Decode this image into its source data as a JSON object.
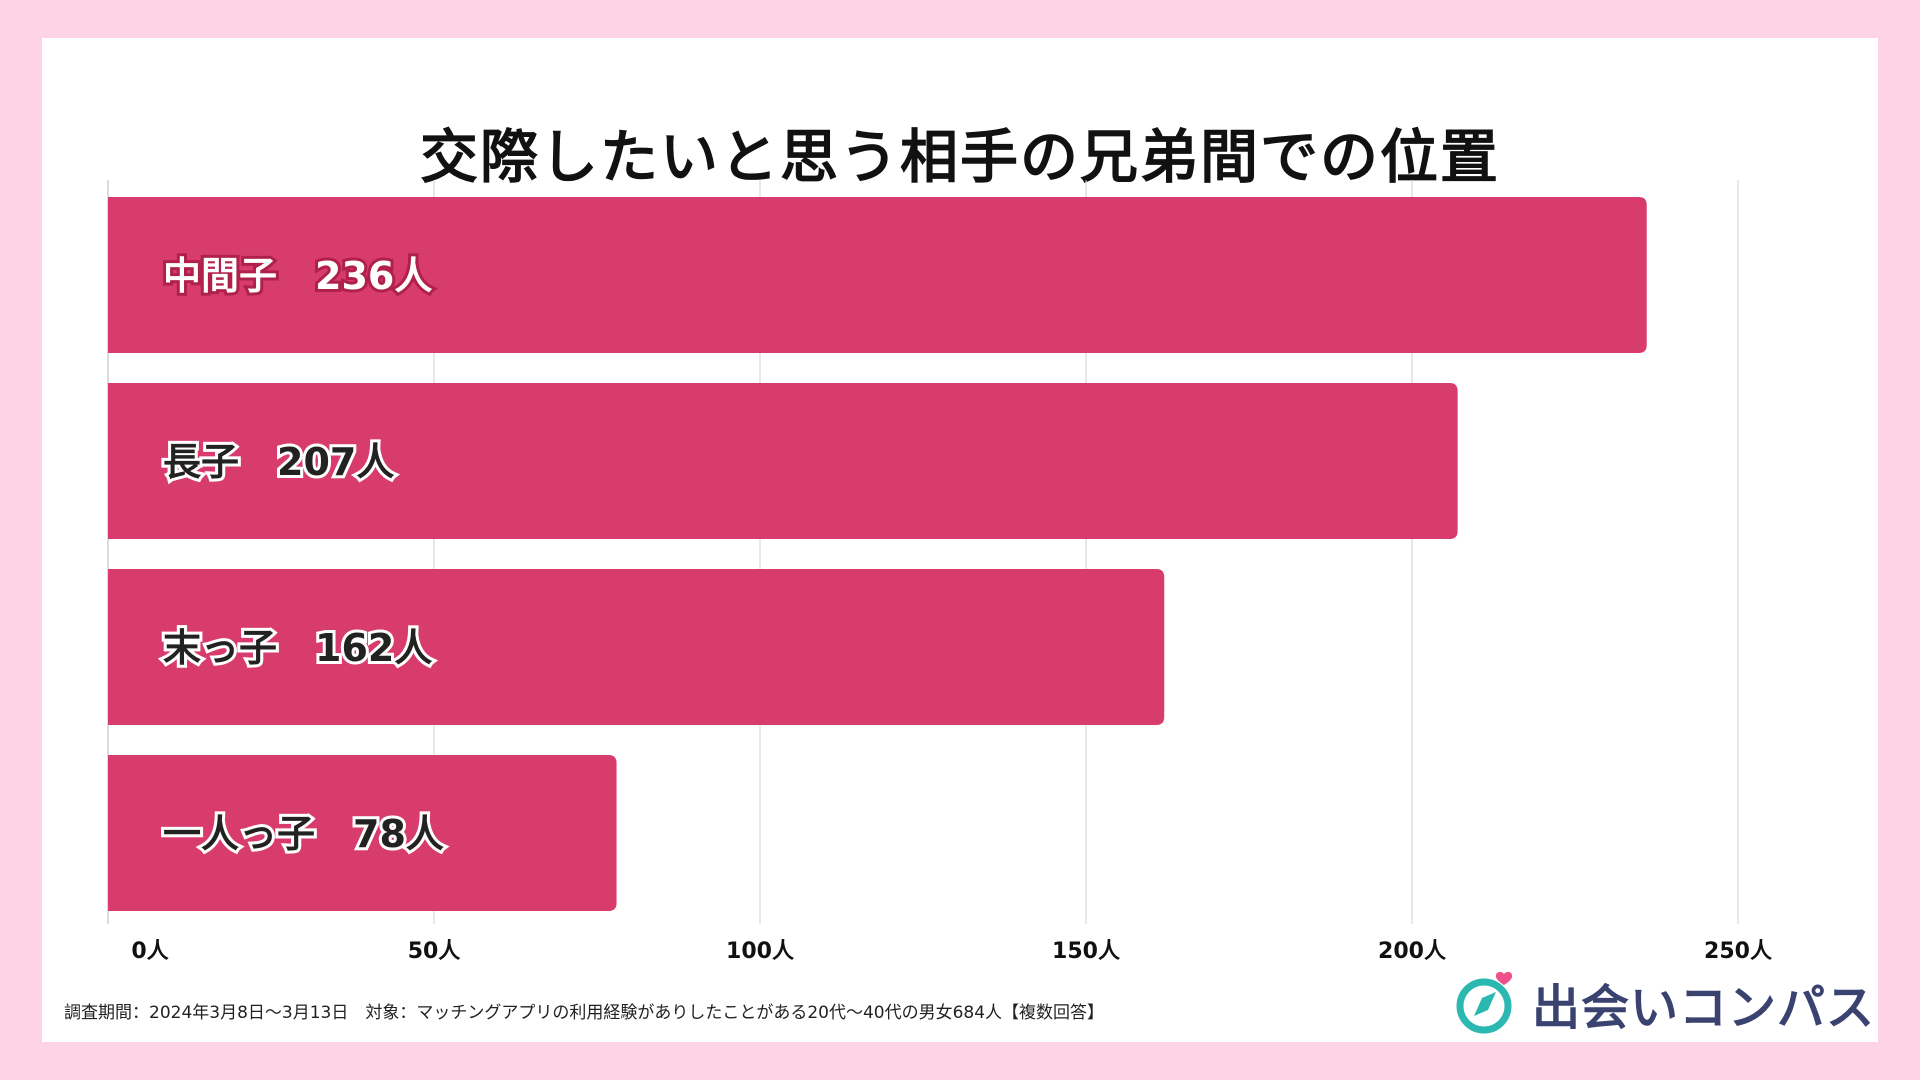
{
  "chart_data": {
    "type": "bar",
    "orientation": "horizontal",
    "title": "交際したいと思う相手の兄弟間での位置",
    "categories": [
      "中間子",
      "長子",
      "末っ子",
      "一人っ子"
    ],
    "values": [
      236,
      207,
      162,
      78
    ],
    "bar_labels": [
      "中間子　236人",
      "長子　207人",
      "末っ子　162人",
      "一人っ子　78人"
    ],
    "xlim": [
      0,
      250
    ],
    "x_ticks": [
      0,
      50,
      100,
      150,
      200,
      250
    ],
    "x_tick_labels": [
      "0人",
      "50人",
      "100人",
      "150人",
      "200人",
      "250人"
    ],
    "grid": true,
    "bar_color": "#d83c6c"
  },
  "footnote": "調査期間：2024年3月8日〜3月13日　対象：マッチングアプリの利用経験がありしたことがある20代〜40代の男女684人【複数回答】",
  "logo": {
    "name": "出会いコンパス",
    "icon": "compass-heart-icon"
  },
  "colors": {
    "background": "#ffd3e6",
    "card": "#ffffff",
    "bar": "#d83c6c",
    "grid": "#d0d0d0",
    "logo_teal": "#2bb8b0",
    "logo_text": "#3a4270",
    "heart": "#ef4f8a"
  }
}
